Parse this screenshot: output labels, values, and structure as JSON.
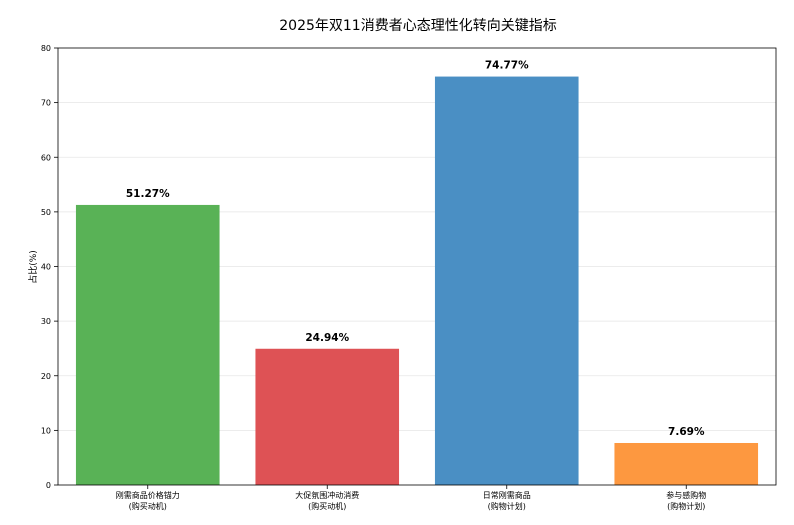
{
  "chart_data": {
    "type": "bar",
    "title": "2025年双11消费者心态理性化转向关键指标",
    "xlabel": "",
    "ylabel": "占比(%)",
    "ylim": [
      0,
      80
    ],
    "yticks": [
      0,
      10,
      20,
      30,
      40,
      50,
      60,
      70,
      80
    ],
    "grid": true,
    "categories": [
      [
        "刚需商品价格锚力",
        "(购买动机)"
      ],
      [
        "大促氛围冲动消费",
        "(购买动机)"
      ],
      [
        "日常刚需商品",
        "(购物计划)"
      ],
      [
        "参与感购物",
        "(购物计划)"
      ]
    ],
    "values": [
      51.27,
      24.94,
      74.77,
      7.69
    ],
    "value_labels": [
      "51.27%",
      "24.94%",
      "74.77%",
      "7.69%"
    ],
    "colors": [
      "#59b256",
      "#de5255",
      "#4a8fc4",
      "#fd9840"
    ]
  }
}
